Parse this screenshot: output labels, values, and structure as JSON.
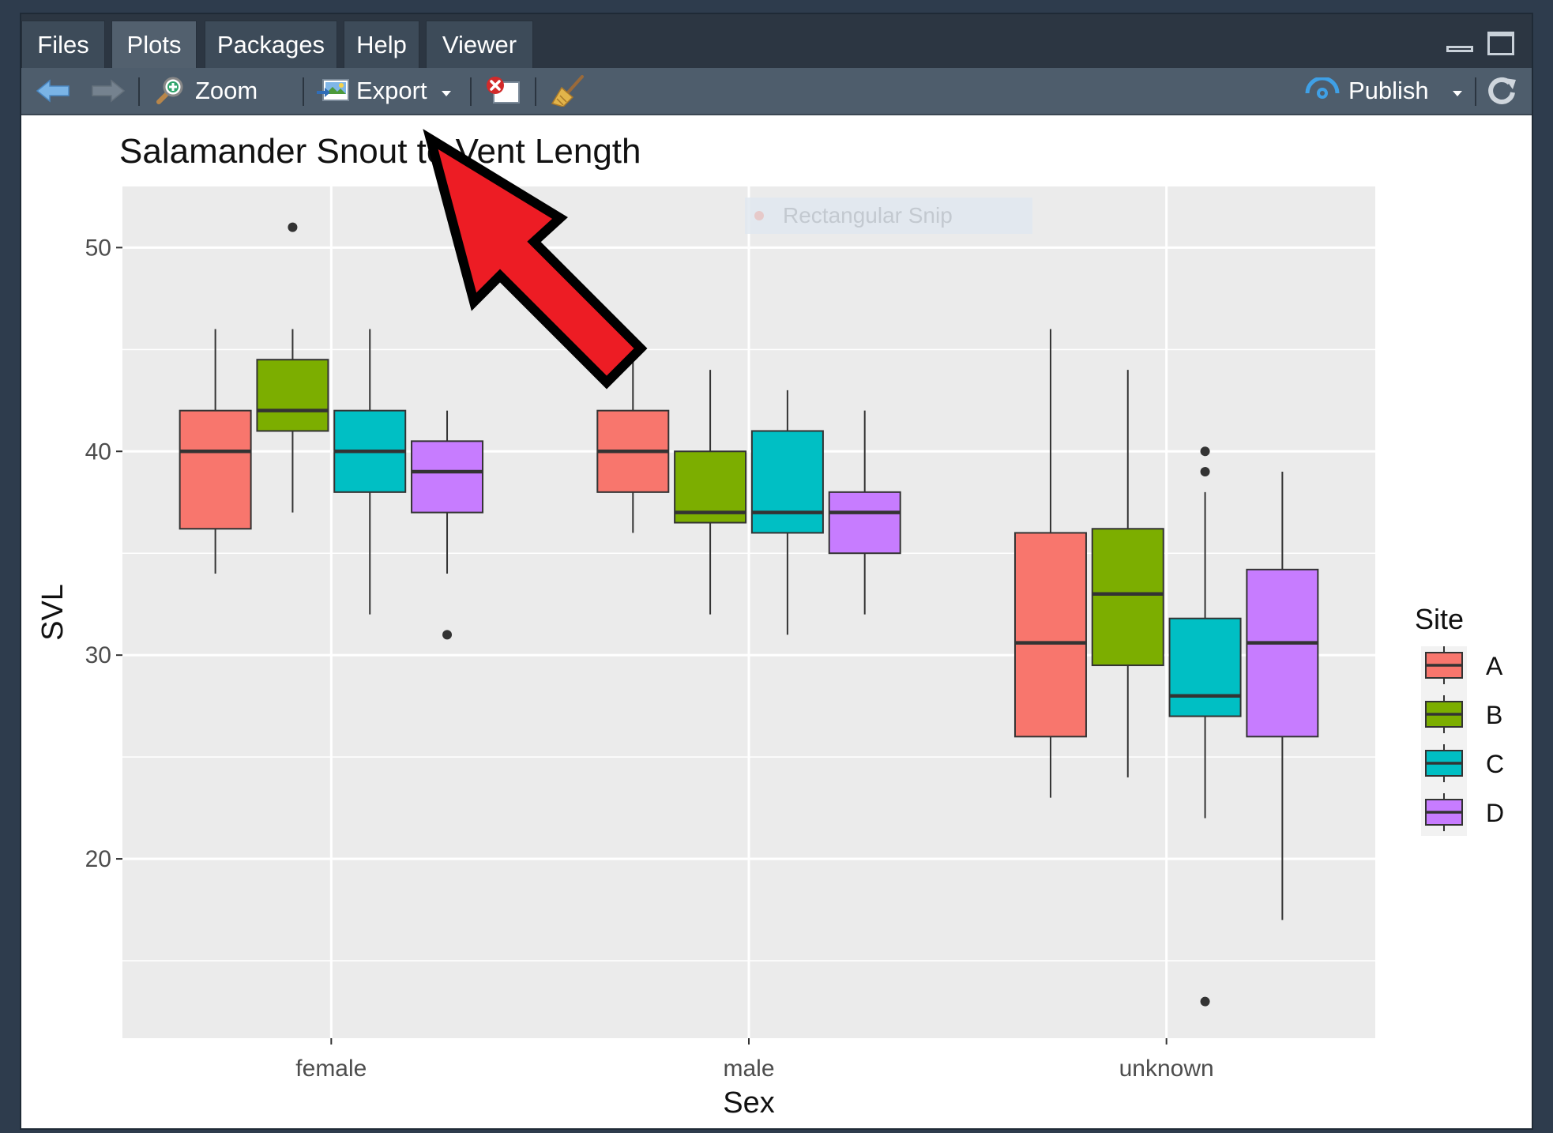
{
  "tabs": [
    {
      "label": "Files",
      "active": false
    },
    {
      "label": "Plots",
      "active": true
    },
    {
      "label": "Packages",
      "active": false
    },
    {
      "label": "Help",
      "active": false
    },
    {
      "label": "Viewer",
      "active": false
    }
  ],
  "toolbar": {
    "zoom_label": "Zoom",
    "export_label": "Export",
    "publish_label": "Publish"
  },
  "snip_overlay": {
    "label": "Rectangular Snip"
  },
  "colors": {
    "A": "#F8766D",
    "B": "#7CAE00",
    "C": "#00BFC4",
    "D": "#C77CFF",
    "arrow": "#ED1C24"
  },
  "chart_data": {
    "type": "boxplot",
    "title": "Salamander Snout to Vent Length",
    "xlabel": "Sex",
    "ylabel": "SVL",
    "ylim": [
      11.2,
      53
    ],
    "yticks": [
      20,
      30,
      40,
      50
    ],
    "categories": [
      "female",
      "male",
      "unknown"
    ],
    "legend": {
      "title": "Site",
      "position": "right",
      "entries": [
        "A",
        "B",
        "C",
        "D"
      ]
    },
    "grid": true,
    "series": [
      {
        "name": "A",
        "boxes": [
          {
            "min": 34,
            "q1": 36.2,
            "median": 40,
            "q3": 42,
            "max": 46,
            "outliers": []
          },
          {
            "min": 36,
            "q1": 38,
            "median": 40,
            "q3": 42,
            "max": 45,
            "outliers": []
          },
          {
            "min": 23,
            "q1": 26,
            "median": 30.6,
            "q3": 36,
            "max": 46,
            "outliers": []
          }
        ]
      },
      {
        "name": "B",
        "boxes": [
          {
            "min": 37,
            "q1": 41,
            "median": 42,
            "q3": 44.5,
            "max": 46,
            "outliers": [
              51
            ]
          },
          {
            "min": 32,
            "q1": 36.5,
            "median": 37,
            "q3": 40,
            "max": 44,
            "outliers": []
          },
          {
            "min": 24,
            "q1": 29.5,
            "median": 33,
            "q3": 36.2,
            "max": 44,
            "outliers": []
          }
        ]
      },
      {
        "name": "C",
        "boxes": [
          {
            "min": 32,
            "q1": 38,
            "median": 40,
            "q3": 42,
            "max": 46,
            "outliers": []
          },
          {
            "min": 31,
            "q1": 36,
            "median": 37,
            "q3": 41,
            "max": 43,
            "outliers": []
          },
          {
            "min": 22,
            "q1": 27,
            "median": 28,
            "q3": 31.8,
            "max": 38,
            "outliers": [
              40,
              39,
              13
            ]
          }
        ]
      },
      {
        "name": "D",
        "boxes": [
          {
            "min": 34,
            "q1": 37,
            "median": 39,
            "q3": 40.5,
            "max": 42,
            "outliers": [
              31
            ]
          },
          {
            "min": 32,
            "q1": 35,
            "median": 37,
            "q3": 38,
            "max": 42,
            "outliers": []
          },
          {
            "min": 17,
            "q1": 26,
            "median": 30.6,
            "q3": 34.2,
            "max": 39,
            "outliers": []
          }
        ]
      }
    ]
  }
}
